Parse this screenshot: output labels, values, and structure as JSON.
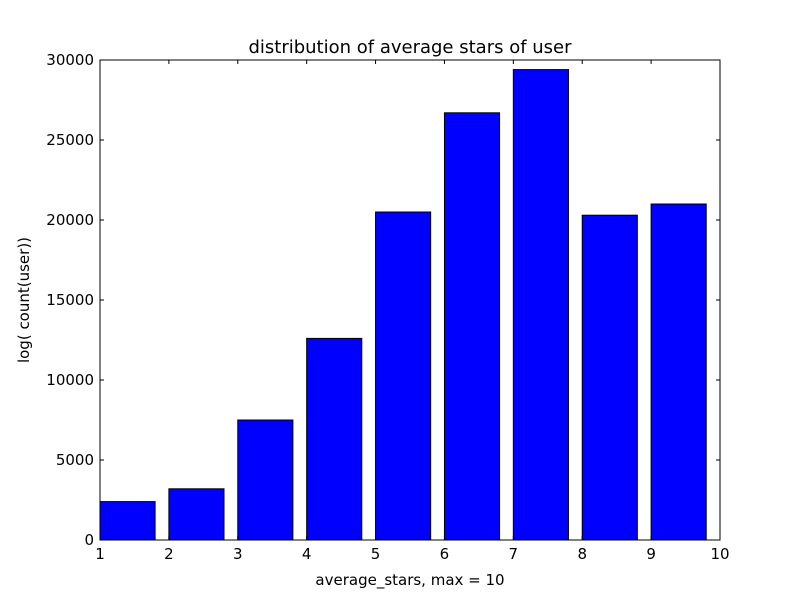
{
  "chart_data": {
    "type": "bar",
    "title": "distribution of average stars of user",
    "xlabel": "average_stars, max = 10",
    "ylabel": "log( count(user))",
    "xlim": [
      1,
      10
    ],
    "ylim": [
      0,
      30000
    ],
    "x_ticks": [
      "1",
      "2",
      "3",
      "4",
      "5",
      "6",
      "7",
      "8",
      "9",
      "10"
    ],
    "y_ticks": [
      "0",
      "5000",
      "10000",
      "15000",
      "20000",
      "25000",
      "30000"
    ],
    "bar_start": [
      1,
      2,
      3,
      4,
      5,
      6,
      7,
      8,
      9
    ],
    "bar_width": 0.8,
    "values": [
      2400,
      3200,
      7500,
      12600,
      20500,
      26700,
      29400,
      20300,
      21000
    ],
    "grid": false,
    "bar_color": "#0000ff",
    "edge_color": "#000000"
  }
}
